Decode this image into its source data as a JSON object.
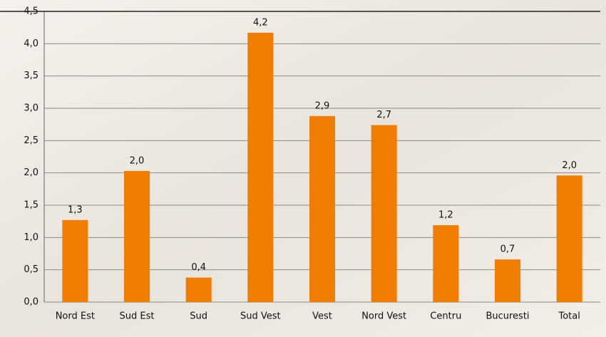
{
  "chart_data": {
    "type": "bar",
    "categories": [
      "Nord Est",
      "Sud Est",
      "Sud",
      "Sud Vest",
      "Vest",
      "Nord Vest",
      "Centru",
      "Bucuresti",
      "Total"
    ],
    "values": [
      1.27,
      2.03,
      0.38,
      4.17,
      2.88,
      2.74,
      1.19,
      0.66,
      1.96
    ],
    "value_labels": [
      "1,3",
      "2,0",
      "0,4",
      "4,2",
      "2,9",
      "2,7",
      "1,2",
      "0,7",
      "2,0"
    ],
    "color": "#f07c00",
    "ylim": [
      0,
      4.5
    ],
    "yticks": [
      {
        "value": 0,
        "label": "0,0"
      },
      {
        "value": 0.5,
        "label": "0,5"
      },
      {
        "value": 1,
        "label": "1,0"
      },
      {
        "value": 1.5,
        "label": "1,5"
      },
      {
        "value": 2,
        "label": "2,0"
      },
      {
        "value": 2.5,
        "label": "2,5"
      },
      {
        "value": 3,
        "label": "3,0"
      },
      {
        "value": 3.5,
        "label": "3,5"
      },
      {
        "value": 4,
        "label": "4,0"
      },
      {
        "value": 4.5,
        "label": "4,5"
      }
    ],
    "grid": true
  }
}
